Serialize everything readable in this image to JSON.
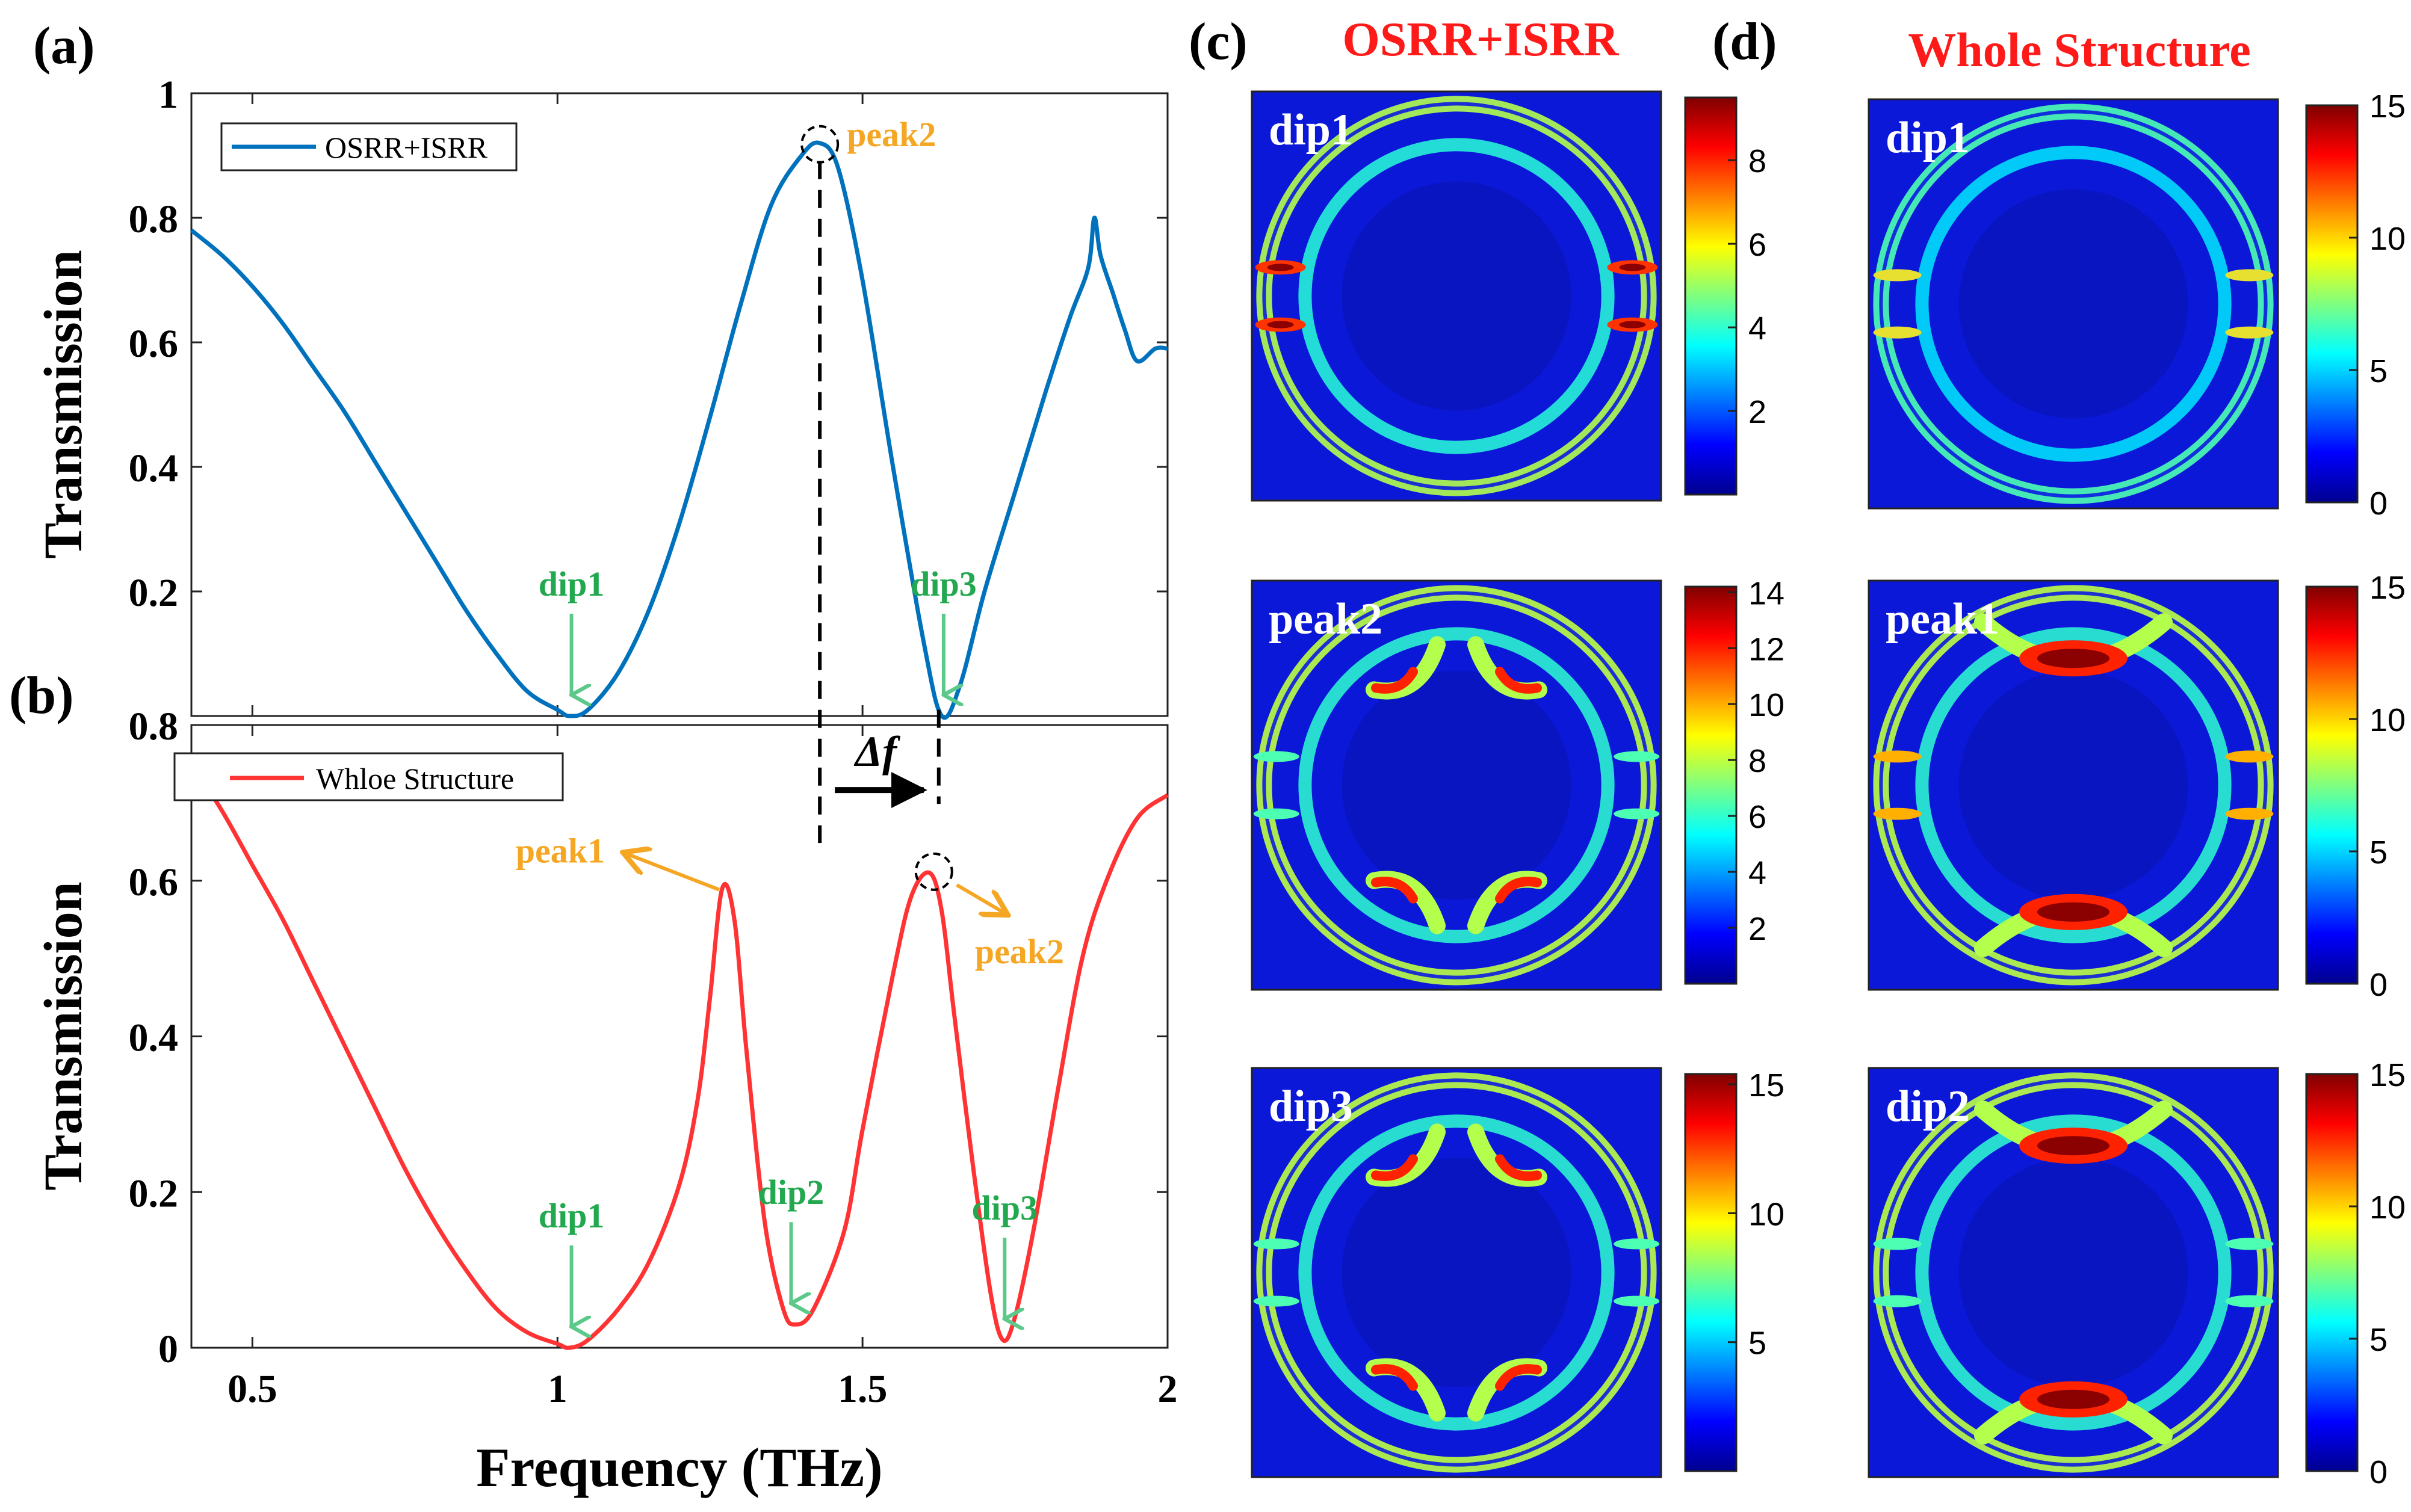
{
  "panel_labels": {
    "a": "(a)",
    "b": "(b)",
    "c": "(c)",
    "d": "(d)"
  },
  "colors": {
    "osrr_line": "#0072BD",
    "whole_line": "#FF3333",
    "dip_label": "#22A84E",
    "peak_label": "#F5A623",
    "title_red": "#FF1A1A",
    "arrow_green": "#5CC98A",
    "arrow_orange": "#F5A623"
  },
  "chart_data": [
    {
      "id": "a",
      "type": "line",
      "legend": "OSRR+ISRR",
      "ylabel": "Transmission",
      "xlim": [
        0.4,
        2.0
      ],
      "ylim": [
        0,
        1
      ],
      "yticks": [
        "0.2",
        "0.4",
        "0.6",
        "0.8",
        "1"
      ],
      "x": [
        0.4,
        0.45,
        0.5,
        0.55,
        0.6,
        0.65,
        0.7,
        0.75,
        0.8,
        0.85,
        0.9,
        0.95,
        1.0,
        1.02,
        1.05,
        1.1,
        1.15,
        1.2,
        1.25,
        1.3,
        1.35,
        1.4,
        1.43,
        1.46,
        1.5,
        1.55,
        1.6,
        1.63,
        1.66,
        1.7,
        1.75,
        1.8,
        1.84,
        1.87,
        1.88,
        1.89,
        1.91,
        1.93,
        1.95,
        1.98,
        2.0
      ],
      "y": [
        0.78,
        0.74,
        0.69,
        0.63,
        0.56,
        0.49,
        0.41,
        0.33,
        0.25,
        0.17,
        0.1,
        0.04,
        0.01,
        0.0,
        0.01,
        0.07,
        0.17,
        0.31,
        0.48,
        0.66,
        0.82,
        0.9,
        0.92,
        0.88,
        0.7,
        0.4,
        0.12,
        0.0,
        0.05,
        0.2,
        0.36,
        0.52,
        0.64,
        0.72,
        0.8,
        0.74,
        0.68,
        0.62,
        0.57,
        0.59,
        0.59
      ],
      "annotations": [
        {
          "text": "peak2",
          "x": 1.43,
          "y": 0.92,
          "kind": "peak"
        },
        {
          "text": "dip1",
          "x": 1.02,
          "y": 0.0,
          "kind": "dip"
        },
        {
          "text": "dip3",
          "x": 1.63,
          "y": 0.0,
          "kind": "dip"
        }
      ]
    },
    {
      "id": "b",
      "type": "line",
      "legend": "Whloe Structure",
      "ylabel": "Transmission",
      "xlabel": "Frequency (THz)",
      "xlim": [
        0.4,
        2.0
      ],
      "ylim": [
        0,
        0.8
      ],
      "xticks": [
        "0.5",
        "1",
        "1.5",
        "2"
      ],
      "yticks": [
        "0",
        "0.2",
        "0.4",
        "0.6",
        "0.8"
      ],
      "x": [
        0.4,
        0.45,
        0.5,
        0.55,
        0.6,
        0.65,
        0.7,
        0.75,
        0.8,
        0.85,
        0.9,
        0.95,
        1.0,
        1.02,
        1.05,
        1.1,
        1.15,
        1.2,
        1.23,
        1.25,
        1.27,
        1.29,
        1.31,
        1.34,
        1.37,
        1.39,
        1.42,
        1.47,
        1.5,
        1.55,
        1.58,
        1.61,
        1.63,
        1.65,
        1.68,
        1.71,
        1.73,
        1.75,
        1.78,
        1.82,
        1.86,
        1.9,
        1.95,
        2.0
      ],
      "y": [
        0.75,
        0.69,
        0.62,
        0.55,
        0.47,
        0.39,
        0.31,
        0.23,
        0.16,
        0.1,
        0.05,
        0.02,
        0.005,
        0.0,
        0.01,
        0.05,
        0.11,
        0.21,
        0.32,
        0.45,
        0.59,
        0.55,
        0.38,
        0.16,
        0.05,
        0.03,
        0.05,
        0.15,
        0.28,
        0.48,
        0.58,
        0.61,
        0.56,
        0.43,
        0.24,
        0.07,
        0.01,
        0.04,
        0.15,
        0.33,
        0.5,
        0.6,
        0.68,
        0.71
      ],
      "annotations": [
        {
          "text": "peak1",
          "x": 1.27,
          "y": 0.59,
          "kind": "peak"
        },
        {
          "text": "peak2",
          "x": 1.62,
          "y": 0.61,
          "kind": "peak"
        },
        {
          "text": "dip1",
          "x": 1.02,
          "y": 0.0,
          "kind": "dip"
        },
        {
          "text": "dip2",
          "x": 1.38,
          "y": 0.03,
          "kind": "dip"
        },
        {
          "text": "dip3",
          "x": 1.73,
          "y": 0.01,
          "kind": "dip"
        }
      ],
      "delta_f_label": "Δf"
    }
  ],
  "field_maps": {
    "c_title": "OSRR+ISRR",
    "d_title": "Whole Structure",
    "maps": [
      {
        "id": "c1",
        "label": "dip1",
        "pattern": "dip1",
        "peak_level": 0.95,
        "colorbar_ticks": [
          "8",
          "6",
          "4",
          "2"
        ],
        "tick_values": [
          8,
          6,
          4,
          2
        ],
        "cb_min": 0,
        "cb_max": 9.5
      },
      {
        "id": "c2",
        "label": "peak2",
        "pattern": "peak",
        "peak_level": 1.0,
        "colorbar_ticks": [
          "14",
          "12",
          "10",
          "8",
          "6",
          "4",
          "2"
        ],
        "tick_values": [
          14,
          12,
          10,
          8,
          6,
          4,
          2
        ],
        "cb_min": 0,
        "cb_max": 14.2
      },
      {
        "id": "c3",
        "label": "dip3",
        "pattern": "dip3",
        "peak_level": 1.0,
        "colorbar_ticks": [
          "15",
          "10",
          "5"
        ],
        "tick_values": [
          15,
          10,
          5
        ],
        "cb_min": 0,
        "cb_max": 15.4
      },
      {
        "id": "d1",
        "label": "dip1",
        "pattern": "dipweak",
        "peak_level": 0.45,
        "colorbar_ticks": [
          "15",
          "10",
          "5",
          "0"
        ],
        "tick_values": [
          15,
          10,
          5,
          0
        ],
        "cb_min": 0,
        "cb_max": 15
      },
      {
        "id": "d2",
        "label": "peak1",
        "pattern": "peak1",
        "peak_level": 1.0,
        "colorbar_ticks": [
          "15",
          "10",
          "5",
          "0"
        ],
        "tick_values": [
          15,
          10,
          5,
          0
        ],
        "cb_min": 0,
        "cb_max": 15
      },
      {
        "id": "d3",
        "label": "dip2",
        "pattern": "dip2",
        "peak_level": 1.0,
        "colorbar_ticks": [
          "15",
          "10",
          "5",
          "0"
        ],
        "tick_values": [
          15,
          10,
          5,
          0
        ],
        "cb_min": 0,
        "cb_max": 15
      }
    ]
  }
}
